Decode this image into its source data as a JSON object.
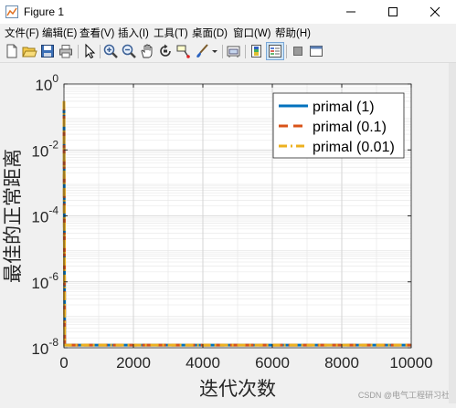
{
  "window": {
    "title": "Figure 1",
    "minimize_icon": "minimize-icon",
    "maximize_icon": "maximize-icon",
    "close_icon": "close-icon"
  },
  "menu": [
    "文件(F)",
    "编辑(E)",
    "查看(V)",
    "插入(I)",
    "工具(T)",
    "桌面(D)",
    "窗口(W)",
    "帮助(H)"
  ],
  "toolbar_icons": [
    "new-figure-icon",
    "open-file-icon",
    "save-icon",
    "print-icon",
    "select-arrow-icon",
    "zoom-in-icon",
    "zoom-out-icon",
    "pan-icon",
    "rotate-icon",
    "data-cursor-icon",
    "brush-icon",
    "brush-dropdown-icon",
    "link-icon",
    "colorbar-icon",
    "legend-icon",
    "hide-tools-icon",
    "dock-icon"
  ],
  "chart_data": {
    "type": "line",
    "xlabel": "迭代次数",
    "ylabel": "最佳的正常距离",
    "xlim": [
      0,
      10000
    ],
    "ylim": [
      1e-08,
      1
    ],
    "yscale": "log",
    "grid": true,
    "x_ticks": [
      "0",
      "2000",
      "4000",
      "6000",
      "8000",
      "10000"
    ],
    "y_ticks": [
      {
        "base": "10",
        "exp": "0"
      },
      {
        "base": "10",
        "exp": "-2"
      },
      {
        "base": "10",
        "exp": "-4"
      },
      {
        "base": "10",
        "exp": "-6"
      },
      {
        "base": "10",
        "exp": "-8"
      }
    ],
    "legend_position": "top-right",
    "series": [
      {
        "name": "primal (1)",
        "color": "#0072bd",
        "style": "solid",
        "x": [
          0,
          20,
          10000
        ],
        "y": [
          0.3,
          1.2e-08,
          1.2e-08
        ]
      },
      {
        "name": "primal (0.1)",
        "color": "#d95319",
        "style": "dashed",
        "x": [
          0,
          20,
          10000
        ],
        "y": [
          0.3,
          1.2e-08,
          1.2e-08
        ]
      },
      {
        "name": "primal (0.01)",
        "color": "#edb120",
        "style": "dashdot",
        "x": [
          0,
          20,
          10000
        ],
        "y": [
          0.3,
          1.2e-08,
          1.2e-08
        ]
      }
    ]
  },
  "watermark": "CSDN @电气工程研习社"
}
